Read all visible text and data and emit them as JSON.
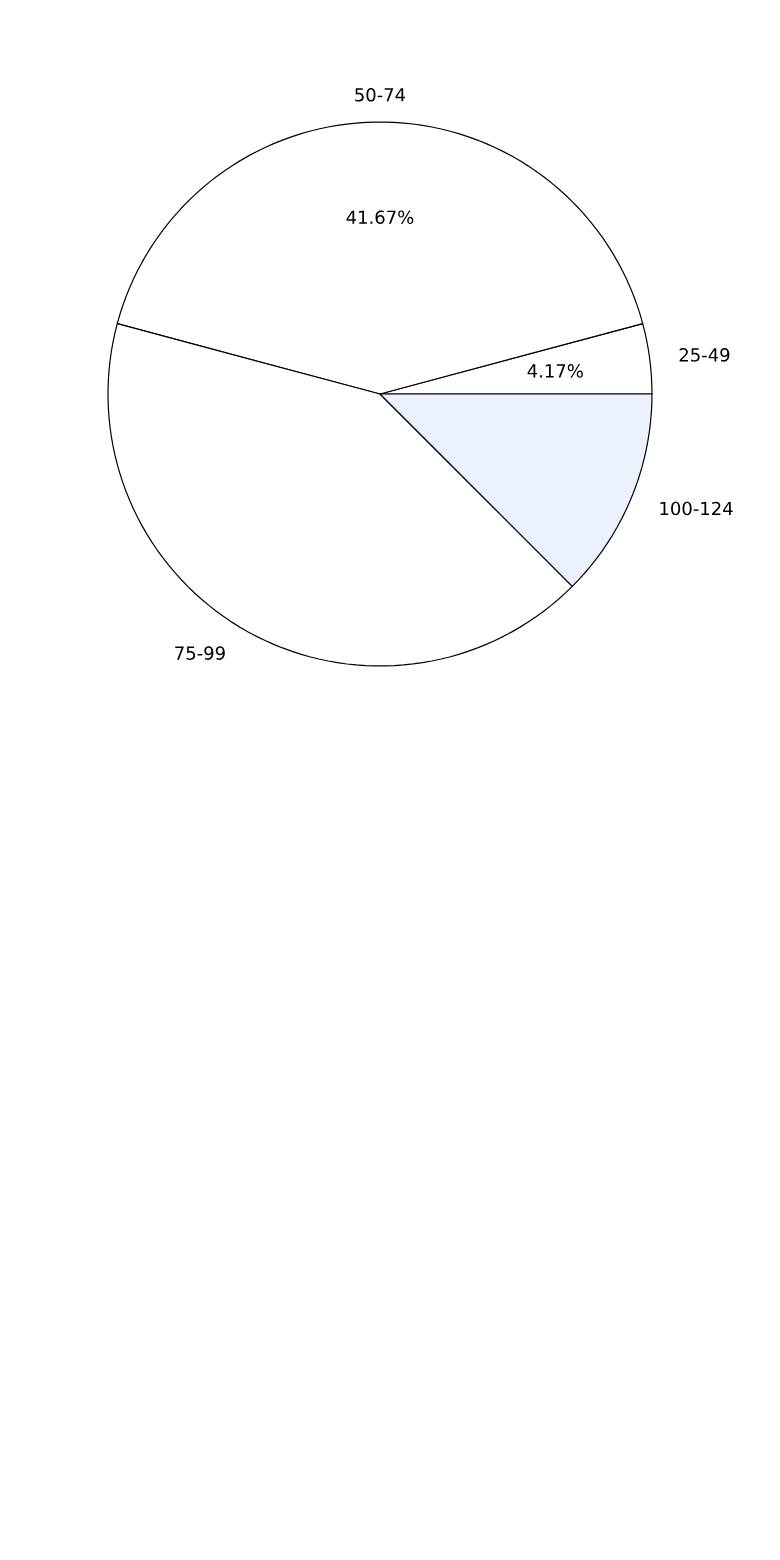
{
  "chart_data": {
    "type": "pie",
    "categories": [
      "25-49",
      "50-74",
      "75-99",
      "100-124"
    ],
    "values": [
      4.17,
      41.67,
      41.67,
      12.5
    ],
    "colors": [
      "#ffffff",
      "#ffffff",
      "#ffffff",
      "#ebf2fd"
    ],
    "value_labels": [
      "4.17%",
      "41.67%",
      null,
      null
    ]
  }
}
